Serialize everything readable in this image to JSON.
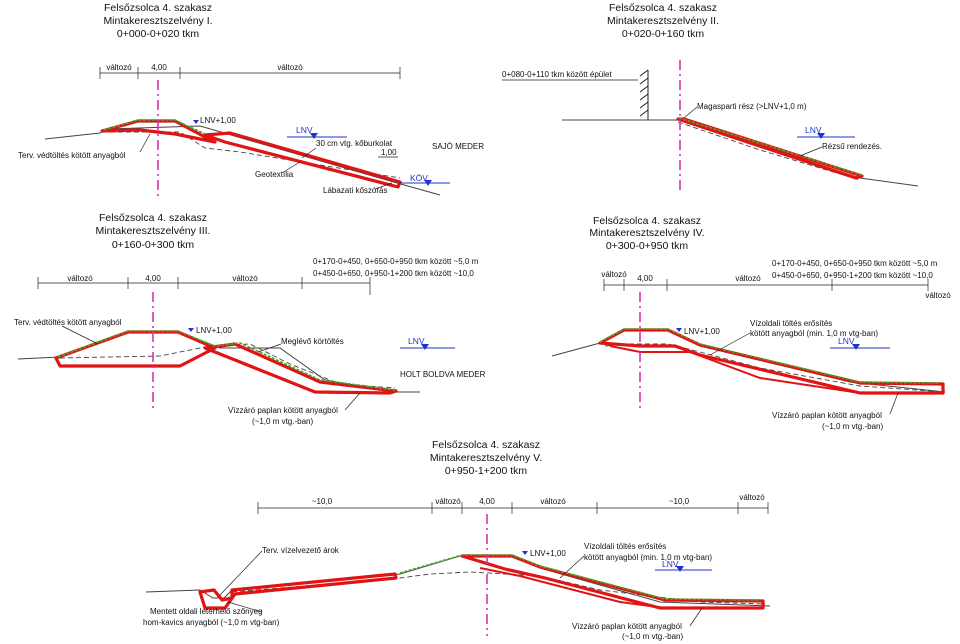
{
  "sections": {
    "s1": {
      "title": "Felsőzsolca 4. szakasz",
      "subtitle": "Mintakeresztszelvény I.",
      "range": "0+000-0+020 tkm",
      "dim_left": "változó",
      "dim_crest": "4,00",
      "dim_right": "változó",
      "lnv_label": "LNV+1,00",
      "label_fill": "Terv. védtöltés kötött anyagból",
      "label_revet": "30 cm vtg. kőburkolat",
      "label_revet_dim": "1,00",
      "label_riverbed": "SAJÓ MEDER",
      "label_geotextile": "Geotextília",
      "label_toe": "Lábazati kőszórás",
      "water_lnv": "LNV",
      "water_kov": "KÖV"
    },
    "s2": {
      "title": "Felsőzsolca 4. szakasz",
      "subtitle": "Mintakeresztszelvény II.",
      "range": "0+020-0+160 tkm",
      "label_building": "0+080-0+110 tkm között épület",
      "label_highbank": "Magasparti rész (>LNV+1,0 m)",
      "label_slope": "Rézsű rendezés.",
      "water_lnv": "LNV"
    },
    "s3": {
      "title": "Felsőzsolca 4. szakasz",
      "subtitle": "Mintakeresztszelvény III.",
      "range": "0+160-0+300 tkm",
      "note_line1": "0+170-0+450, 0+650-0+950 tkm között ~5,0 m",
      "note_line2": "0+450-0+650, 0+950-1+200 tkm között ~10,0",
      "dim_left": "változó",
      "dim_crest": "4,00",
      "dim_right": "változó",
      "lnv_label": "LNV+1,00",
      "label_fill": "Terv. védtöltés kötött anyagból",
      "label_existing": "Meglévő körtöltés",
      "label_riverbed": "HOLT BOLDVA MEDER",
      "label_blanket_1": "Vízzáró paplan kötött anyagból",
      "label_blanket_2": "(~1,0 m vtg.-ban)",
      "water_lnv": "LNV"
    },
    "s4": {
      "title": "Felsőzsolca 4. szakasz",
      "subtitle": "Mintakeresztszelvény IV.",
      "range": "0+300-0+950 tkm",
      "note_line1": "0+170-0+450, 0+650-0+950 tkm között ~5,0 m",
      "note_line2": "0+450-0+650, 0+950-1+200 tkm között ~10,0",
      "dim_left": "változó",
      "dim_crest": "4,00",
      "dim_mid": "változó",
      "dim_right": "változó",
      "lnv_label": "LNV+1,00",
      "label_reinf_1": "Vízoldali töltés erősítés",
      "label_reinf_2": "kötött anyagból (min. 1,0 m vtg-ban)",
      "label_blanket_1": "Vízzáró paplan kötött anyagból",
      "label_blanket_2": "(~1,0 m vtg.-ban)",
      "water_lnv": "LNV"
    },
    "s5": {
      "title": "Felsőzsolca 4. szakasz",
      "subtitle": "Mintakeresztszelvény V.",
      "range": "0+950-1+200 tkm",
      "dim_far_left": "~10,0",
      "dim_left": "változó",
      "dim_crest": "4,00",
      "dim_right": "változó",
      "dim_far_right": "~10,0",
      "dim_end": "változó",
      "lnv_label": "LNV+1,00",
      "label_ditch": "Terv. vízelvezető árok",
      "label_reinf_1": "Vízoldali töltés erősítés",
      "label_reinf_2": "kötött anyagból (min. 1,0 m vtg-ban)",
      "label_mat_1": "Mentett oldali leterhelő szőnyeg",
      "label_mat_2": "hom-kavics anyagból (~1,0 m vtg-ban)",
      "label_blanket_1": "Vízzáró paplan kötött anyagból",
      "label_blanket_2": "(~1,0 m vtg.-ban)",
      "water_lnv": "LNV"
    }
  },
  "colors": {
    "fill_outline": "#e01414",
    "grass": "#44aa2c",
    "axis": "#d633b0",
    "water": "#2233cc"
  }
}
